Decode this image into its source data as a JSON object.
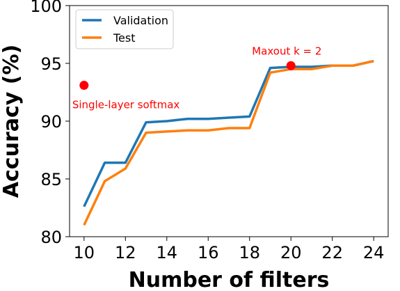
{
  "chart_data": {
    "type": "line",
    "xlabel": "Number of filters",
    "ylabel": "Accuracy (%)",
    "xlim": [
      9.3,
      24.7
    ],
    "ylim": [
      80,
      100
    ],
    "x_ticks": [
      10,
      12,
      14,
      16,
      18,
      20,
      22,
      24
    ],
    "y_ticks": [
      80,
      85,
      90,
      95,
      100
    ],
    "grid": false,
    "legend_position": "top-left",
    "series": [
      {
        "name": "Validation",
        "color": "#1f77b4",
        "x": [
          10,
          11,
          12,
          13,
          14,
          15,
          16,
          17,
          18,
          19,
          20,
          21,
          22,
          23,
          24
        ],
        "y": [
          82.6,
          86.4,
          86.4,
          89.9,
          90.0,
          90.2,
          90.2,
          90.3,
          90.4,
          94.6,
          94.7,
          94.7,
          94.8,
          94.8,
          95.2
        ]
      },
      {
        "name": "Test",
        "color": "#ff7f0e",
        "x": [
          10,
          11,
          12,
          13,
          14,
          15,
          16,
          17,
          18,
          19,
          20,
          21,
          22,
          23,
          24
        ],
        "y": [
          81.0,
          84.8,
          85.9,
          89.0,
          89.1,
          89.2,
          89.2,
          89.4,
          89.4,
          94.2,
          94.5,
          94.5,
          94.8,
          94.8,
          95.2
        ]
      }
    ],
    "points": [
      {
        "label": "Single-layer softmax",
        "x": 10,
        "y": 93.1,
        "color": "#ff0000"
      },
      {
        "label": "Maxout k = 2",
        "x": 20,
        "y": 94.8,
        "color": "#ff0000"
      }
    ]
  }
}
